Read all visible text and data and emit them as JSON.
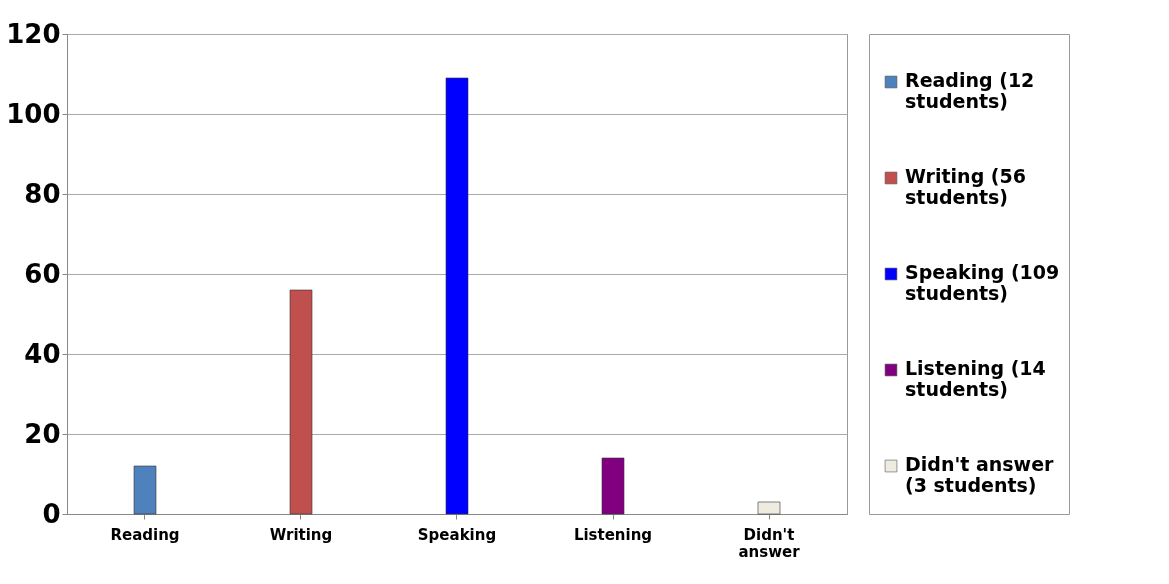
{
  "chart_data": {
    "type": "bar",
    "categories": [
      "Reading",
      "Writing",
      "Speaking",
      "Listening",
      "Didn't answer"
    ],
    "series": [
      {
        "name": "Reading (12 students)",
        "color": "#4f81bd",
        "values": [
          12,
          null,
          null,
          null,
          null
        ]
      },
      {
        "name": "Writing (56 students)",
        "color": "#c0504d",
        "values": [
          null,
          56,
          null,
          null,
          null
        ]
      },
      {
        "name": "Speaking (109 students)",
        "color": "#0000ff",
        "values": [
          null,
          null,
          109,
          null,
          null
        ]
      },
      {
        "name": "Listening (14 students)",
        "color": "#800080",
        "values": [
          null,
          null,
          null,
          14,
          null
        ]
      },
      {
        "name": "Didn't answer (3 students)",
        "color": "#eeece1",
        "values": [
          null,
          null,
          null,
          null,
          3
        ]
      }
    ],
    "ylim": [
      0,
      120
    ],
    "yticks": [
      0,
      20,
      40,
      60,
      80,
      100,
      120
    ],
    "grid": "y",
    "legend": "right"
  }
}
